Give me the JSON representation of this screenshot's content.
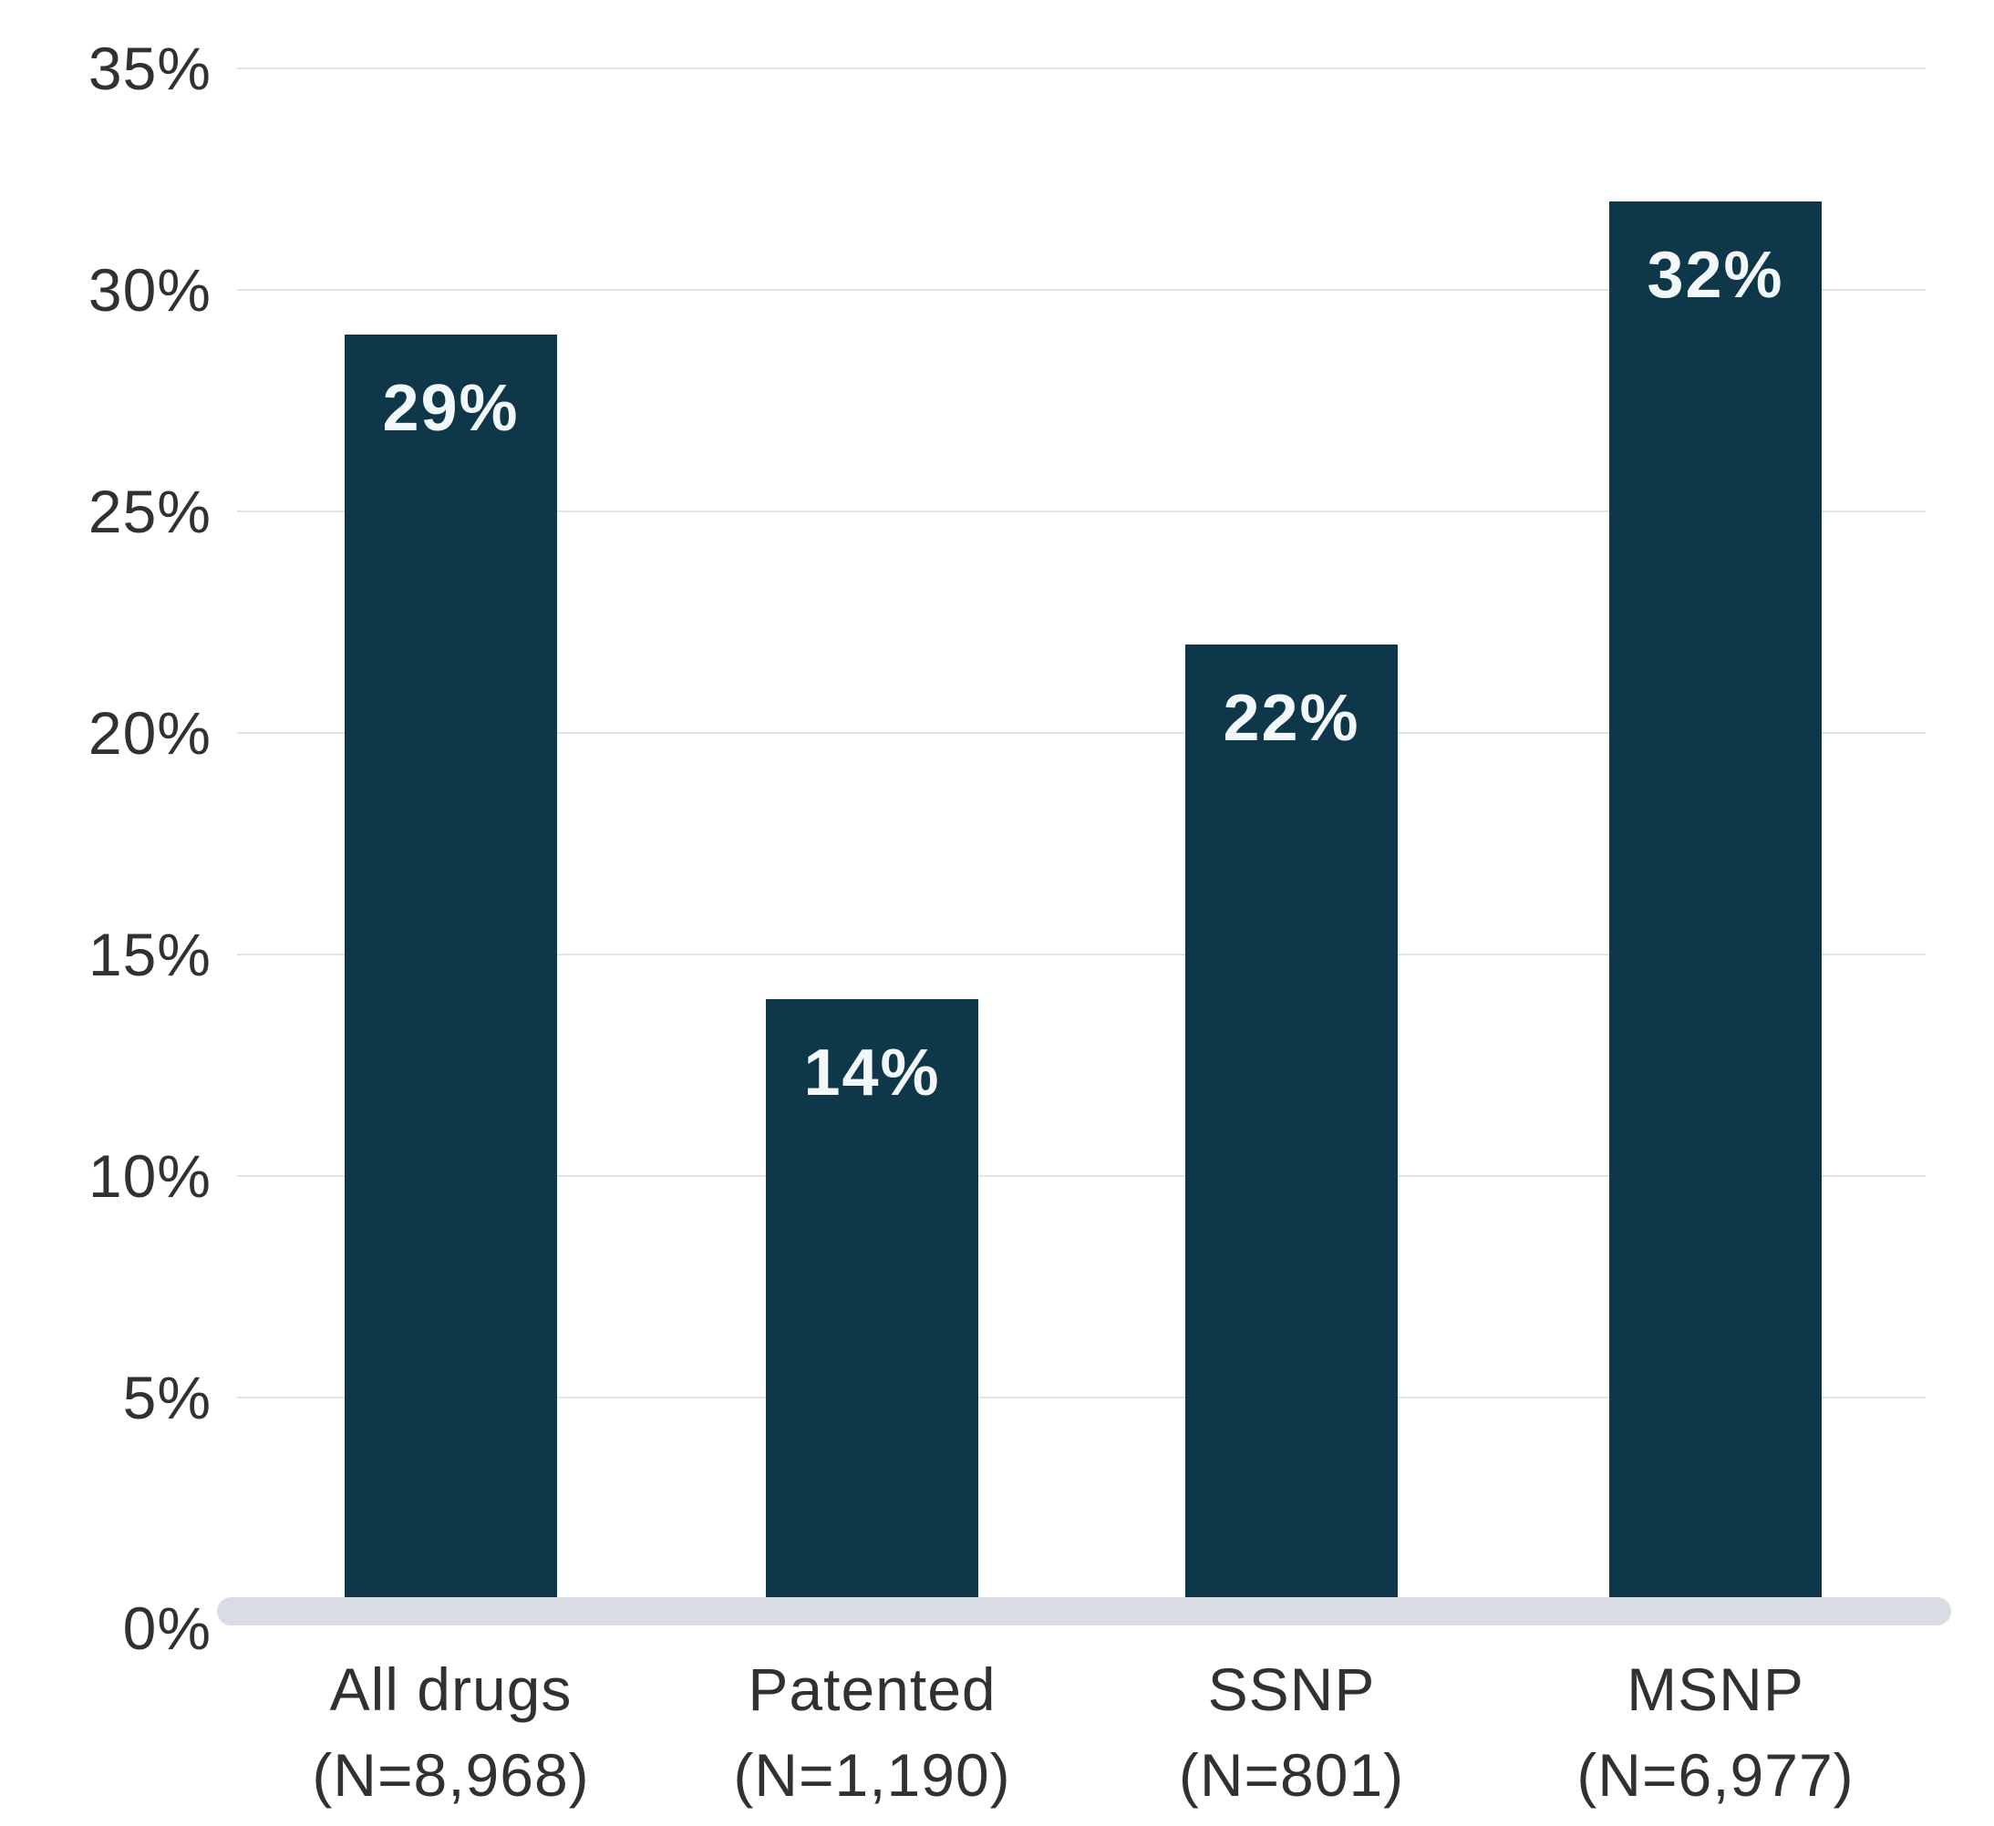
{
  "chart_data": {
    "type": "bar",
    "title": "",
    "xlabel": "",
    "ylabel": "",
    "categories": [
      {
        "label": "All drugs",
        "sub": "(N=8,968)"
      },
      {
        "label": "Patented",
        "sub": "(N=1,190)"
      },
      {
        "label": "SSNP",
        "sub": "(N=801)"
      },
      {
        "label": "MSNP",
        "sub": "(N=6,977)"
      }
    ],
    "values": [
      29,
      14,
      22,
      32
    ],
    "value_labels": [
      "29%",
      "14%",
      "22%",
      "32%"
    ],
    "y_axis": {
      "ylim": [
        0,
        35
      ],
      "tick_step": 5,
      "grid": true,
      "ticks": [
        {
          "value": 35,
          "label": "35%"
        },
        {
          "value": 30,
          "label": "30%"
        },
        {
          "value": 25,
          "label": "25%"
        },
        {
          "value": 20,
          "label": "20%"
        },
        {
          "value": 15,
          "label": "15%"
        },
        {
          "value": 10,
          "label": "10%"
        },
        {
          "value": 5,
          "label": "5%"
        },
        {
          "value": 0,
          "label": "0%"
        }
      ]
    },
    "legend": null,
    "colors": {
      "bar": "#0e374a",
      "value_text": "#f2f8fa",
      "axis_text": "#303134",
      "gridline": "#e2e3e4",
      "baseline": "#d9dce5",
      "background": "#ffffff"
    }
  }
}
